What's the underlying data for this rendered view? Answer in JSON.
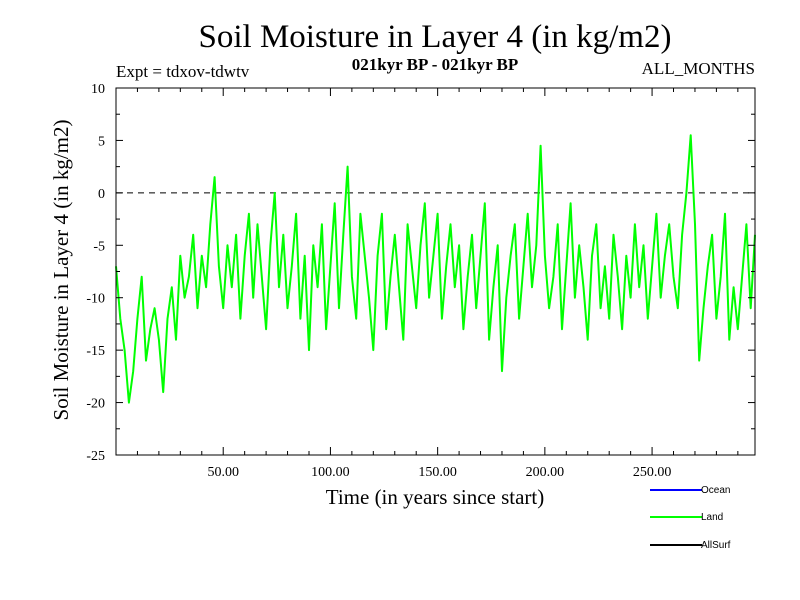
{
  "chart_data": {
    "type": "line",
    "title": "Soil Moisture in Layer 4 (in kg/m2)",
    "subtitle_left": "Expt = tdxov-tdwtv",
    "subtitle_center": "021kyr BP - 021kyr BP",
    "subtitle_right": "ALL_MONTHS",
    "xlabel": "Time (in years since start)",
    "ylabel": "Soil Moisture in Layer 4 (in kg/m2)",
    "xlim": [
      0,
      298
    ],
    "ylim": [
      -25,
      10
    ],
    "x_ticks": [
      50,
      100,
      150,
      200,
      250
    ],
    "x_tick_labels": [
      "50.00",
      "100.00",
      "150.00",
      "200.00",
      "250.00"
    ],
    "y_ticks": [
      -25,
      -20,
      -15,
      -10,
      -5,
      0,
      5,
      10
    ],
    "y_tick_labels": [
      "-25",
      "-20",
      "-15",
      "-10",
      "-5",
      "0",
      "5",
      "10"
    ],
    "reference_line": {
      "y": 0,
      "style": "dashed"
    },
    "legend": {
      "placement": "bottom-right",
      "entries": [
        {
          "label": "Ocean",
          "color": "#0000ff"
        },
        {
          "label": "Land",
          "color": "#00ff00"
        },
        {
          "label": "AllSurf",
          "color": "#000000"
        }
      ]
    },
    "series": [
      {
        "name": "Land",
        "color": "#00ff00",
        "x": [
          0,
          2,
          4,
          6,
          8,
          10,
          12,
          14,
          16,
          18,
          20,
          22,
          24,
          26,
          28,
          30,
          32,
          34,
          36,
          38,
          40,
          42,
          44,
          46,
          48,
          50,
          52,
          54,
          56,
          58,
          60,
          62,
          64,
          66,
          68,
          70,
          72,
          74,
          76,
          78,
          80,
          82,
          84,
          86,
          88,
          90,
          92,
          94,
          96,
          98,
          100,
          102,
          104,
          106,
          108,
          110,
          112,
          114,
          116,
          118,
          120,
          122,
          124,
          126,
          128,
          130,
          132,
          134,
          136,
          138,
          140,
          142,
          144,
          146,
          148,
          150,
          152,
          154,
          156,
          158,
          160,
          162,
          164,
          166,
          168,
          170,
          172,
          174,
          176,
          178,
          180,
          182,
          184,
          186,
          188,
          190,
          192,
          194,
          196,
          198,
          200,
          202,
          204,
          206,
          208,
          210,
          212,
          214,
          216,
          218,
          220,
          222,
          224,
          226,
          228,
          230,
          232,
          234,
          236,
          238,
          240,
          242,
          244,
          246,
          248,
          250,
          252,
          254,
          256,
          258,
          260,
          262,
          264,
          266,
          268,
          270,
          272,
          274,
          276,
          278,
          280,
          282,
          284,
          286,
          288,
          290,
          292,
          294,
          296,
          298
        ],
        "values": [
          -7,
          -12,
          -15,
          -20,
          -17,
          -12,
          -8,
          -16,
          -13,
          -11,
          -14,
          -19,
          -12,
          -9,
          -14,
          -6,
          -10,
          -8,
          -4,
          -11,
          -6,
          -9,
          -3,
          1.5,
          -7,
          -11,
          -5,
          -9,
          -4,
          -12,
          -6,
          -2,
          -10,
          -3,
          -8,
          -13,
          -5,
          0,
          -9,
          -4,
          -11,
          -7,
          -2,
          -12,
          -6,
          -15,
          -5,
          -9,
          -3,
          -13,
          -7,
          -1,
          -11,
          -4,
          2.5,
          -8,
          -12,
          -2,
          -6,
          -10,
          -15,
          -6,
          -2,
          -13,
          -8,
          -4,
          -9,
          -14,
          -3,
          -7,
          -11,
          -5,
          -1,
          -10,
          -6,
          -2,
          -12,
          -7,
          -3,
          -9,
          -5,
          -13,
          -8,
          -4,
          -11,
          -6,
          -1,
          -14,
          -9,
          -5,
          -17,
          -10,
          -6,
          -3,
          -12,
          -7,
          -2,
          -9,
          -5,
          4.5,
          -6,
          -11,
          -8,
          -3,
          -13,
          -7,
          -1,
          -10,
          -5,
          -9,
          -14,
          -6,
          -3,
          -11,
          -7,
          -12,
          -4,
          -8,
          -13,
          -6,
          -10,
          -3,
          -9,
          -5,
          -12,
          -7,
          -2,
          -10,
          -6,
          -3,
          -8,
          -11,
          -4,
          0,
          5.5,
          -3,
          -16,
          -11,
          -7,
          -4,
          -12,
          -8,
          -2,
          -14,
          -9,
          -13,
          -8,
          -3,
          -11,
          -4
        ]
      },
      {
        "name": "Ocean",
        "color": "#0000ff",
        "values": []
      },
      {
        "name": "AllSurf",
        "color": "#000000",
        "values": []
      }
    ]
  }
}
